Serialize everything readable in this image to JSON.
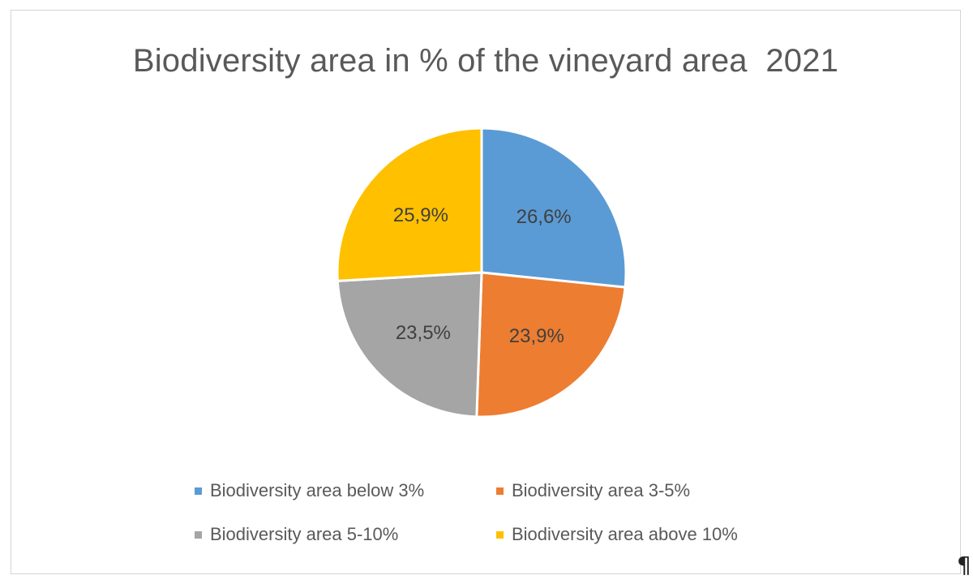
{
  "chart_data": {
    "type": "pie",
    "title": "Biodiversity area in % of the vineyard area  2021",
    "legend_position": "bottom",
    "slices": [
      {
        "name": "Biodiversity area below 3%",
        "value": 26.6,
        "label": "26,6%",
        "color": "#5b9bd5"
      },
      {
        "name": "Biodiversity area 3-5%",
        "value": 23.9,
        "label": "23,9%",
        "color": "#ed7d31"
      },
      {
        "name": "Biodiversity area 5-10%",
        "value": 23.5,
        "label": "23,5%",
        "color": "#a5a5a5"
      },
      {
        "name": "Biodiversity area above 10%",
        "value": 25.9,
        "label": "25,9%",
        "color": "#ffc000"
      }
    ]
  },
  "paragraph_mark": "¶"
}
